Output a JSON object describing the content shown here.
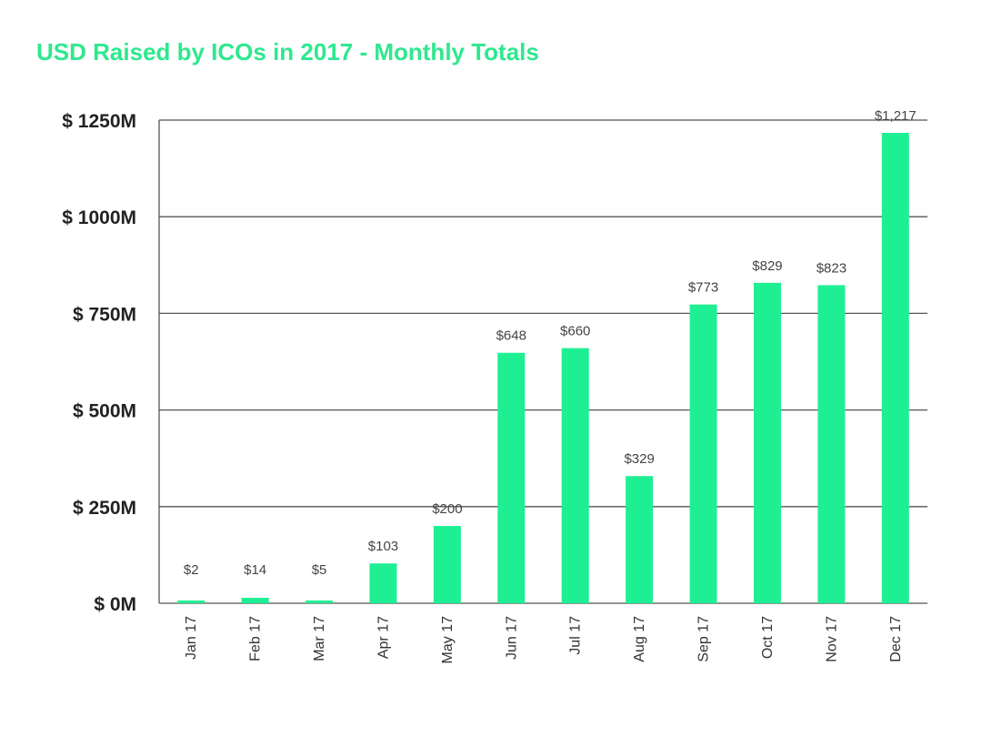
{
  "chart_data": {
    "type": "bar",
    "title": "USD Raised by ICOs in 2017 - Monthly Totals",
    "xlabel": "",
    "ylabel": "",
    "categories": [
      "Jan 17",
      "Feb 17",
      "Mar 17",
      "Apr 17",
      "May 17",
      "Jun 17",
      "Jul 17",
      "Aug 17",
      "Sep 17",
      "Oct 17",
      "Nov 17",
      "Dec 17"
    ],
    "values": [
      2,
      14,
      5,
      103,
      200,
      648,
      660,
      329,
      773,
      829,
      823,
      1217
    ],
    "data_labels": [
      "$2",
      "$14",
      "$5",
      "$103",
      "$200",
      "$648",
      "$660",
      "$329",
      "$773",
      "$829",
      "$823",
      "$1,217"
    ],
    "y_ticks": [
      0,
      250,
      500,
      750,
      1000,
      1250
    ],
    "y_tick_labels": [
      "$ 0M",
      "$ 250M",
      "$ 500M",
      "$ 750M",
      "$ 1000M",
      "$ 1250M"
    ],
    "ylim": [
      0,
      1250
    ],
    "grid": true,
    "legend": "none",
    "colors": {
      "bar": "#1fef93",
      "title": "#2ee88e",
      "grid": "#555555"
    }
  }
}
